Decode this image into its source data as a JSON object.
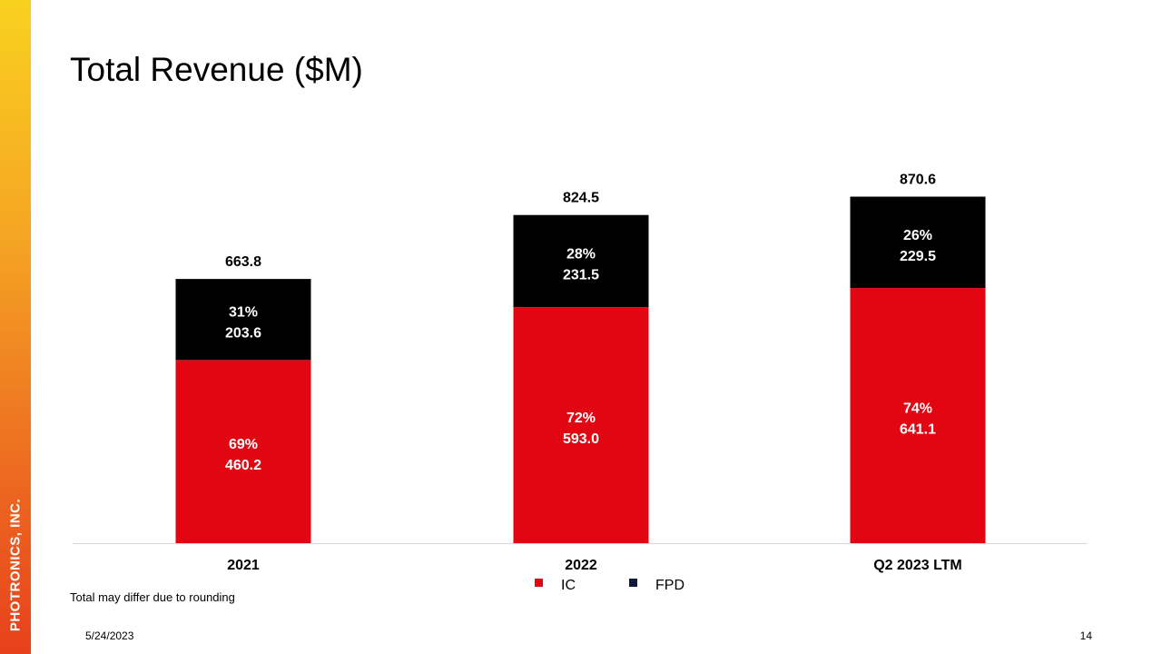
{
  "slide": {
    "title": "Total Revenue ($M)",
    "brand": "PHOTRONICS, INC.",
    "footnote": "Total may differ due to rounding",
    "date": "5/24/2023",
    "page_number": "14"
  },
  "colors": {
    "ic": "#e20613",
    "fpd": "#000000",
    "fpd_legend": "#0b1a3c",
    "baseline": "#d9d9d9",
    "bar_label": "#ffffff"
  },
  "chart_data": {
    "type": "bar",
    "stacked": true,
    "title": "Total Revenue ($M)",
    "categories": [
      "2021",
      "2022",
      "Q2 2023 LTM"
    ],
    "series": [
      {
        "name": "IC",
        "values": [
          460.2,
          593.0,
          641.1
        ],
        "value_labels": [
          "460.2",
          "593.0",
          "641.1"
        ],
        "share_labels": [
          "69%",
          "72%",
          "74%"
        ]
      },
      {
        "name": "FPD",
        "values": [
          203.6,
          231.5,
          229.5
        ],
        "value_labels": [
          "203.6",
          "231.5",
          "229.5"
        ],
        "share_labels": [
          "31%",
          "28%",
          "26%"
        ]
      }
    ],
    "totals": [
      663.8,
      824.5,
      870.6
    ],
    "total_labels": [
      "663.8",
      "824.5",
      "870.6"
    ],
    "legend_position": "bottom-center",
    "grid": false,
    "ylim": [
      0,
      1000
    ]
  }
}
